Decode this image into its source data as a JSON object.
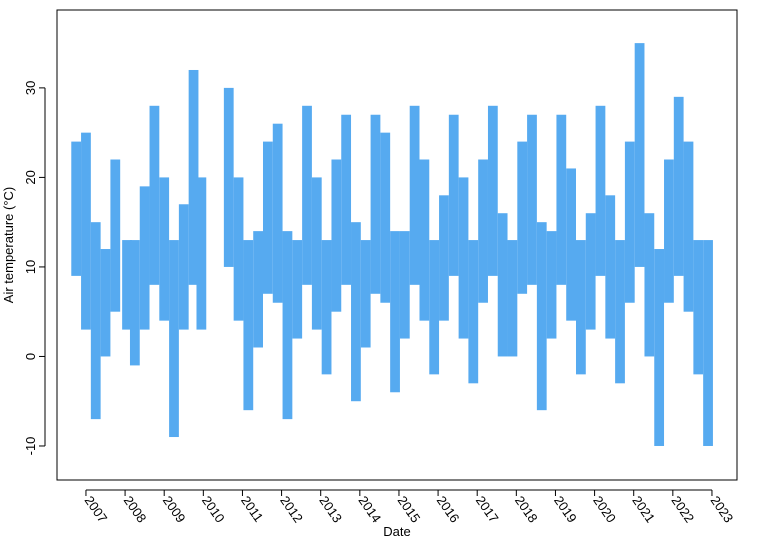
{
  "chart_data": {
    "type": "range",
    "xlabel": "Date",
    "ylabel": "Air temperature (°C)",
    "color": "#56aaf0",
    "x": [
      2006.75,
      2007.0,
      2007.25,
      2007.5,
      2007.75,
      2008.05,
      2008.25,
      2008.5,
      2008.75,
      2009.0,
      2009.25,
      2009.5,
      2009.75,
      2009.95,
      2010.65,
      2010.9,
      2011.15,
      2011.4,
      2011.65,
      2011.9,
      2012.15,
      2012.4,
      2012.65,
      2012.9,
      2013.15,
      2013.4,
      2013.65,
      2013.9,
      2014.15,
      2014.4,
      2014.65,
      2014.9,
      2015.15,
      2015.4,
      2015.65,
      2015.9,
      2016.15,
      2016.4,
      2016.65,
      2016.9,
      2017.15,
      2017.4,
      2017.65,
      2017.9,
      2018.15,
      2018.4,
      2018.65,
      2018.9,
      2019.15,
      2019.4,
      2019.65,
      2019.9,
      2020.15,
      2020.4,
      2020.65,
      2020.9,
      2021.15,
      2021.4,
      2021.65,
      2021.9,
      2022.15,
      2022.4,
      2022.65,
      2022.9
    ],
    "low": [
      9,
      3,
      -7,
      0,
      5,
      3,
      -1,
      3,
      8,
      4,
      -9,
      3,
      8,
      3,
      10,
      4,
      -6,
      1,
      7,
      6,
      -7,
      2,
      8,
      3,
      -2,
      5,
      8,
      -5,
      1,
      7,
      6,
      -4,
      2,
      8,
      4,
      -2,
      4,
      9,
      2,
      -3,
      6,
      9,
      0,
      0,
      7,
      8,
      -6,
      2,
      8,
      4,
      -2,
      3,
      9,
      2,
      -3,
      6,
      10,
      0,
      -10,
      6,
      9,
      5,
      -2,
      -10
    ],
    "high": [
      24,
      25,
      15,
      12,
      22,
      13,
      13,
      19,
      28,
      20,
      13,
      17,
      32,
      20,
      30,
      20,
      13,
      14,
      24,
      26,
      14,
      13,
      28,
      20,
      13,
      22,
      27,
      15,
      13,
      27,
      25,
      14,
      14,
      28,
      22,
      13,
      18,
      27,
      20,
      13,
      22,
      28,
      16,
      13,
      24,
      27,
      15,
      14,
      27,
      21,
      13,
      16,
      28,
      18,
      13,
      24,
      35,
      16,
      12,
      22,
      29,
      24,
      13,
      13
    ],
    "xlim": [
      2006.26,
      2023.64
    ],
    "xticks": [
      2007,
      2008,
      2009,
      2010,
      2011,
      2012,
      2013,
      2014,
      2015,
      2016,
      2017,
      2018,
      2019,
      2020,
      2021,
      2022,
      2023
    ],
    "ylim": [
      -13.8,
      38.7
    ],
    "yticks": [
      -10,
      0,
      10,
      20,
      30
    ]
  }
}
